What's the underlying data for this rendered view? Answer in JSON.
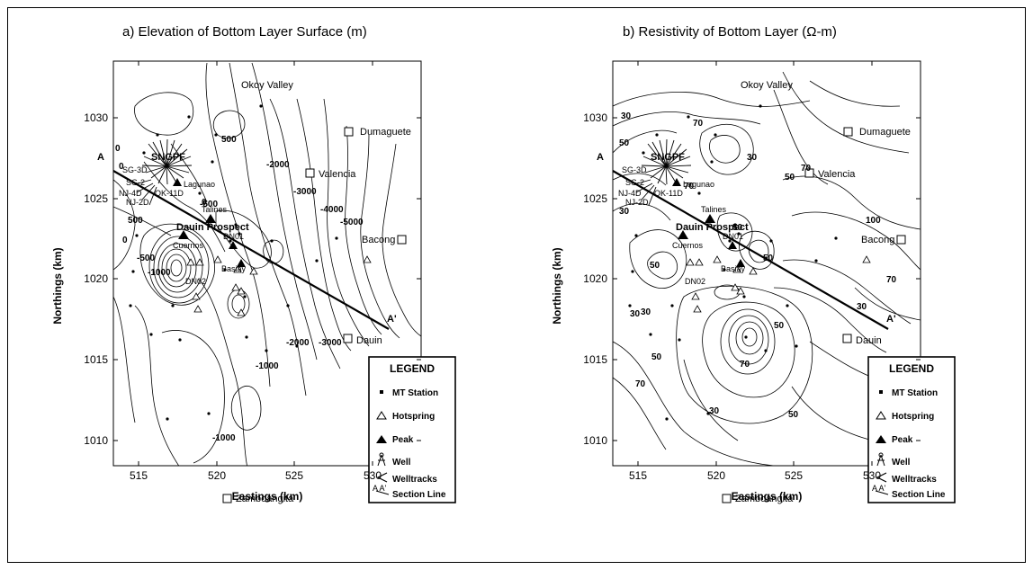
{
  "panels": [
    {
      "title": "a) Elevation of Bottom Layer Surface (m)",
      "contour_labels": [
        "0",
        "0",
        "500",
        "0",
        "-500",
        "-500",
        "-1000",
        "-2000",
        "-3000",
        "-4000",
        "-5000",
        "0",
        "500",
        "-2000",
        "-3000",
        "-1000",
        "-1000"
      ]
    },
    {
      "title": "b) Resistivity of  Bottom Layer (Ω-m)",
      "contour_labels": [
        "30",
        "50",
        "70",
        "30",
        "50",
        "30",
        "70",
        "100",
        "50",
        "50",
        "30",
        "50",
        "70",
        "70",
        "50",
        "70",
        "30",
        "30",
        "50",
        "70",
        "30",
        "50"
      ]
    }
  ],
  "axes": {
    "xlabel": "Eastings (km)",
    "ylabel": "Northings (km)",
    "xticks": [
      "515",
      "520",
      "525",
      "530",
      "535"
    ],
    "yticks": [
      "1030",
      "1025",
      "1020",
      "1015",
      "1010"
    ]
  },
  "places": {
    "okoy_valley": "Okoy Valley",
    "dumaguete": "Dumaguete",
    "valencia": "Valencia",
    "bacong": "Bacong",
    "dauin": "Dauin",
    "zamboanguita": "Zamboangita",
    "sngpf": "SNGPF",
    "lagunao": "Lagunao",
    "talines": "Talines",
    "dauin_prospect": "Dauin Prospect",
    "cuernos": "Cuernos",
    "basiay": "Basiay",
    "dn01": "DN01",
    "dn02": "DN02",
    "sg3d": "SG-3D",
    "sg2": "SG-2",
    "nj4d": "NJ-4D",
    "ok11d": "OK-11D",
    "nj2d": "NJ-2D",
    "section_a": "A",
    "section_a_prime": "A'"
  },
  "legend": {
    "title": "LEGEND",
    "items": [
      "MT Station",
      "Hotspring",
      "Peak",
      "Well",
      "Welltracks",
      "Section Line"
    ],
    "section_symbol": "A  A'"
  }
}
